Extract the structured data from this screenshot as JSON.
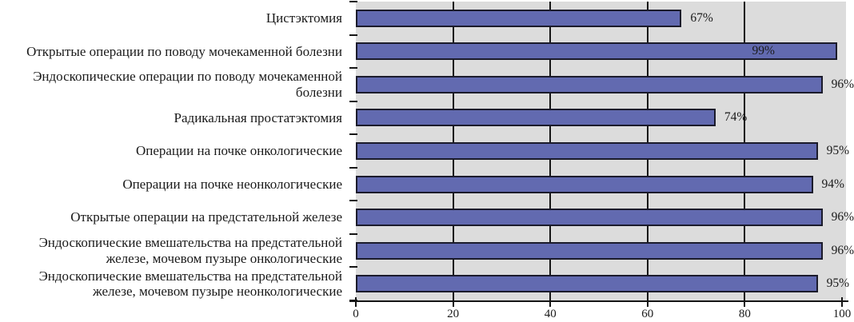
{
  "colors": {
    "bar_fill": "#626ab0",
    "bar_border": "#1b1b2b",
    "plot_background": "#dcdcdc",
    "gridline": "#151515",
    "text": "#1a1a1a",
    "page_background": "#ffffff"
  },
  "chart_data": {
    "type": "bar",
    "orientation": "horizontal",
    "categories": [
      "Цистэктомия",
      "Открытые операции по поводу мочекаменной болезни",
      "Эндоскопические операции по поводу мочекаменной болезни",
      "Радикальная простатэктомия",
      "Операции на почке онкологические",
      "Операции на почке неонкологические",
      "Открытые операции на предстательной железе",
      "Эндоскопические вмешательства на предстательной железе, мочевом пузыре онкологические",
      "Эндоскопические вмешательства на предстательной железе, мочевом пузыре неонкологические"
    ],
    "label_lines": [
      [
        "Цистэктомия"
      ],
      [
        "Открытые операции по поводу мочекаменной болезни"
      ],
      [
        "Эндоскопические операции по поводу мочекаменной",
        "болезни"
      ],
      [
        "Радикальная простатэктомия"
      ],
      [
        "Операции на почке онкологические"
      ],
      [
        "Операции на почке неонкологические"
      ],
      [
        "Открытые операции на предстательной железе"
      ],
      [
        "Эндоскопические вмешательства на предстательной",
        "железе, мочевом пузыре онкологические"
      ],
      [
        "Эндоскопические вмешательства на предстательной",
        "железе, мочевом пузыре неонкологические"
      ]
    ],
    "values": [
      67,
      99,
      96,
      74,
      95,
      94,
      96,
      96,
      95
    ],
    "value_labels": [
      "67%",
      "99%",
      "96%",
      "74%",
      "95%",
      "94%",
      "96%",
      "96%",
      "95%"
    ],
    "xlim": [
      0,
      100
    ],
    "x_ticks": [
      0,
      20,
      40,
      60,
      80,
      100
    ],
    "gridlines_at": [
      20,
      40,
      60,
      80
    ],
    "legend": "none",
    "grid": "vertical"
  }
}
